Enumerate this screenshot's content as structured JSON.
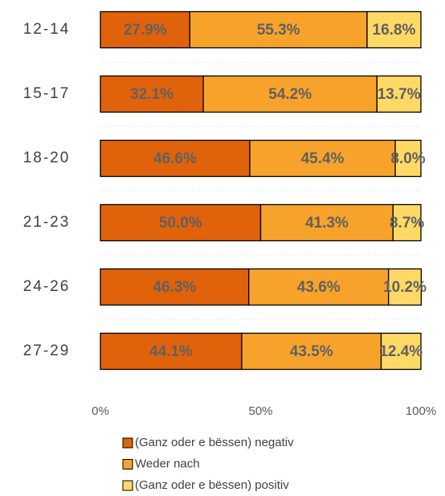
{
  "chart_data": {
    "type": "stacked_barh",
    "categories": [
      "12-14",
      "15-17",
      "18-20",
      "21-23",
      "24-26",
      "27-29"
    ],
    "series": [
      {
        "name": "(Ganz oder e bëssen) negativ",
        "color": "#e0620b",
        "values": [
          27.9,
          32.1,
          46.6,
          50.0,
          46.3,
          44.1
        ],
        "value_labels": [
          "27.9%",
          "32.1%",
          "46.6%",
          "50.0%",
          "46.3%",
          "44.1%"
        ]
      },
      {
        "name": "Weder nach",
        "color": "#f7a32b",
        "values": [
          55.3,
          54.2,
          45.4,
          41.3,
          43.6,
          43.5
        ],
        "value_labels": [
          "55.3%",
          "54.2%",
          "45.4%",
          "41.3%",
          "43.6%",
          "43.5%"
        ]
      },
      {
        "name": "(Ganz oder e bëssen) positiv",
        "color": "#ffd966",
        "values": [
          16.8,
          13.7,
          8.0,
          8.7,
          10.2,
          12.4
        ],
        "value_labels": [
          "16.8%",
          "13.7%",
          "8.0%",
          "8.7%",
          "10.2%",
          "12.4%"
        ]
      }
    ],
    "xlim": [
      0,
      100
    ],
    "xticks": [
      {
        "value": 0,
        "label": "0%"
      },
      {
        "value": 50,
        "label": "50%"
      },
      {
        "value": 100,
        "label": "100%"
      }
    ]
  }
}
